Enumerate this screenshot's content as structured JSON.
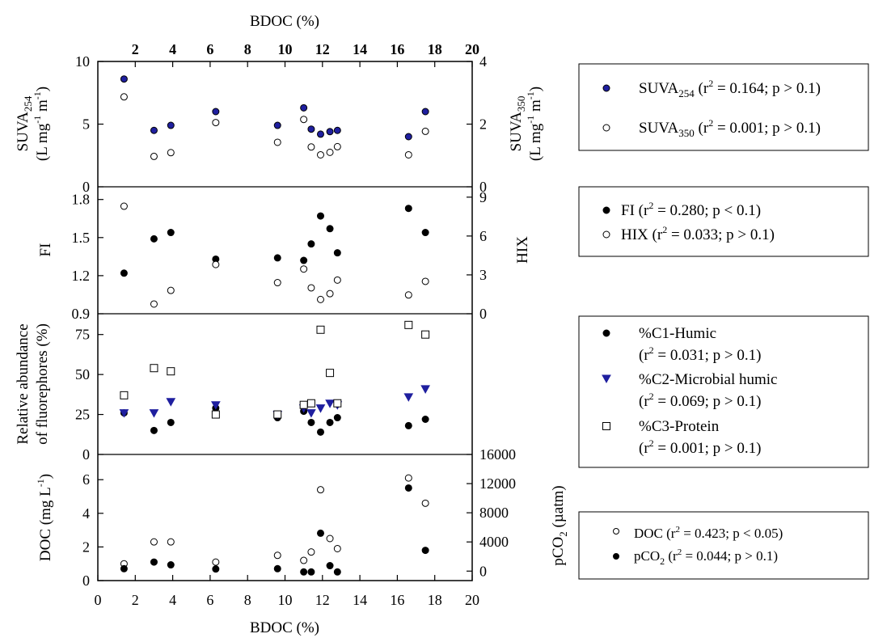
{
  "colors": {
    "blue": "#1f1f9f",
    "black": "#000000",
    "open_fill": "#ffffff"
  },
  "chart_data": {
    "type": "scatter",
    "x_axis": {
      "label": "BDOC (%)",
      "range": [
        0,
        20
      ],
      "ticks": [
        0,
        2,
        4,
        6,
        8,
        10,
        12,
        14,
        16,
        18,
        20
      ],
      "top_ticks": [
        2,
        4,
        6,
        8,
        10,
        12,
        14,
        16,
        18,
        20
      ]
    },
    "panels": [
      {
        "id": "suva",
        "left_axis": {
          "label_main": "SUVA",
          "label_sub": "254",
          "label_line2": "(L mg",
          "label_line2_sup1": "-1",
          "label_line2_mid": " m",
          "label_line2_sup2": "-1",
          "label_line2_end": ")",
          "range": [
            0,
            10
          ],
          "ticks": [
            0,
            5,
            10
          ]
        },
        "right_axis": {
          "label_main": "SUVA",
          "label_sub": "350",
          "label_line2": "(L mg",
          "label_line2_sup1": "-1",
          "label_line2_mid": " m",
          "label_line2_sup2": "-1",
          "label_line2_end": ")",
          "range": [
            0,
            4
          ],
          "ticks": [
            0,
            2,
            4
          ]
        },
        "series": [
          {
            "axis": "left",
            "marker": "circle",
            "fill": "blue",
            "legend": {
              "pre": "SUVA",
              "sub": "254",
              "mid": " (r",
              "sup": "2",
              "post": " = 0.164; p > 0.1)"
            },
            "points": [
              [
                1.4,
                8.6
              ],
              [
                3.0,
                4.5
              ],
              [
                3.9,
                4.9
              ],
              [
                6.3,
                6.0
              ],
              [
                9.6,
                4.9
              ],
              [
                11.0,
                6.3
              ],
              [
                11.4,
                4.6
              ],
              [
                11.9,
                4.2
              ],
              [
                12.4,
                4.4
              ],
              [
                12.8,
                4.5
              ],
              [
                16.6,
                4.0
              ],
              [
                17.5,
                6.0
              ]
            ]
          },
          {
            "axis": "right",
            "marker": "circle",
            "fill": "none",
            "legend": {
              "pre": "SUVA",
              "sub": "350",
              "mid": " (r",
              "sup": "2",
              "post": " = 0.001; p > 0.1)"
            },
            "points": [
              [
                1.4,
                2.87
              ],
              [
                3.0,
                0.97
              ],
              [
                3.9,
                1.09
              ],
              [
                6.3,
                2.05
              ],
              [
                9.6,
                1.42
              ],
              [
                11.0,
                2.15
              ],
              [
                11.4,
                1.27
              ],
              [
                11.9,
                1.02
              ],
              [
                12.4,
                1.1
              ],
              [
                12.8,
                1.28
              ],
              [
                16.6,
                1.02
              ],
              [
                17.5,
                1.77
              ]
            ]
          }
        ]
      },
      {
        "id": "fi",
        "left_axis": {
          "label_main": "FI",
          "range": [
            0.9,
            1.9
          ],
          "ticks": [
            0.9,
            1.2,
            1.5,
            1.8
          ],
          "tick_labels": [
            "0.9",
            "1.2",
            "1.5",
            "1.8"
          ]
        },
        "right_axis": {
          "label_main": "HIX",
          "range": [
            0,
            9.8
          ],
          "ticks": [
            0,
            3,
            6,
            9
          ]
        },
        "series": [
          {
            "axis": "left",
            "marker": "circle",
            "fill": "black",
            "legend": {
              "pre": "FI (r",
              "sup": "2",
              "post": " = 0.280; p < 0.1)"
            },
            "points": [
              [
                1.4,
                1.22
              ],
              [
                3.0,
                1.49
              ],
              [
                3.9,
                1.54
              ],
              [
                6.3,
                1.33
              ],
              [
                9.6,
                1.34
              ],
              [
                11.0,
                1.32
              ],
              [
                11.4,
                1.45
              ],
              [
                11.9,
                1.67
              ],
              [
                12.4,
                1.57
              ],
              [
                12.8,
                1.38
              ],
              [
                16.6,
                1.73
              ],
              [
                17.5,
                1.54
              ]
            ]
          },
          {
            "axis": "right",
            "marker": "circle",
            "fill": "none",
            "legend": {
              "pre": "HIX (r",
              "sup": "2",
              "post": " = 0.033; p > 0.1)"
            },
            "points": [
              [
                1.4,
                8.3
              ],
              [
                3.0,
                0.75
              ],
              [
                3.9,
                1.8
              ],
              [
                6.3,
                3.8
              ],
              [
                9.6,
                2.4
              ],
              [
                11.0,
                3.45
              ],
              [
                11.4,
                2.0
              ],
              [
                11.9,
                1.1
              ],
              [
                12.4,
                1.55
              ],
              [
                12.8,
                2.6
              ],
              [
                16.6,
                1.45
              ],
              [
                17.5,
                2.5
              ]
            ]
          }
        ]
      },
      {
        "id": "fluoro",
        "left_axis": {
          "label_line1": "Relative abundance",
          "label_line2": "of fluorephores (%)",
          "range": [
            0,
            88
          ],
          "ticks": [
            0,
            25,
            50,
            75
          ]
        },
        "series": [
          {
            "axis": "left",
            "marker": "circle",
            "fill": "black",
            "legend": {
              "line1": "%C1-Humic",
              "pre": "(r",
              "sup": "2",
              "post": " = 0.031; p > 0.1)"
            },
            "points": [
              [
                1.4,
                26
              ],
              [
                3.0,
                15
              ],
              [
                3.9,
                20
              ],
              [
                6.3,
                29
              ],
              [
                9.6,
                23
              ],
              [
                11.0,
                27
              ],
              [
                11.4,
                20
              ],
              [
                11.9,
                14
              ],
              [
                12.4,
                20
              ],
              [
                12.8,
                23
              ],
              [
                16.6,
                18
              ],
              [
                17.5,
                22
              ]
            ]
          },
          {
            "axis": "left",
            "marker": "triangle",
            "fill": "blue",
            "legend": {
              "line1": "%C2-Microbial humic",
              "pre": "(r",
              "sup": "2",
              "post": " = 0.069; p > 0.1)"
            },
            "points": [
              [
                1.4,
                26
              ],
              [
                3.0,
                26
              ],
              [
                3.9,
                33
              ],
              [
                6.3,
                31
              ],
              [
                9.6,
                25
              ],
              [
                11.0,
                29
              ],
              [
                11.4,
                26
              ],
              [
                11.9,
                29
              ],
              [
                12.4,
                32
              ],
              [
                12.8,
                31
              ],
              [
                16.6,
                36
              ],
              [
                17.5,
                41
              ]
            ]
          },
          {
            "axis": "left",
            "marker": "square",
            "fill": "none",
            "legend": {
              "line1": "%C3-Protein",
              "pre": "(r",
              "sup": "2",
              "post": " = 0.001; p > 0.1)"
            },
            "points": [
              [
                1.4,
                37
              ],
              [
                3.0,
                54
              ],
              [
                3.9,
                52
              ],
              [
                6.3,
                25
              ],
              [
                9.6,
                25
              ],
              [
                11.0,
                31
              ],
              [
                11.4,
                32
              ],
              [
                11.9,
                78
              ],
              [
                12.4,
                51
              ],
              [
                12.8,
                32
              ],
              [
                16.6,
                81
              ],
              [
                17.5,
                75
              ]
            ]
          }
        ]
      },
      {
        "id": "doc",
        "left_axis": {
          "label_main": "DOC (mg L",
          "label_sup": "-1",
          "label_end": ")",
          "range": [
            0,
            7.5
          ],
          "ticks": [
            0,
            2,
            4,
            6
          ]
        },
        "right_axis": {
          "label_main": "pCO",
          "label_sub": "2",
          "label_end": " (µatm)",
          "range": [
            -1300,
            16000
          ],
          "ticks": [
            0,
            4000,
            8000,
            12000,
            16000
          ]
        },
        "series": [
          {
            "axis": "left",
            "marker": "circle",
            "fill": "none",
            "legend": {
              "pre": "DOC (r",
              "sup": "2",
              "post": " = 0.423; p < 0.05)"
            },
            "points": [
              [
                1.4,
                1.0
              ],
              [
                3.0,
                2.3
              ],
              [
                3.9,
                2.3
              ],
              [
                6.3,
                1.1
              ],
              [
                9.6,
                1.5
              ],
              [
                11.0,
                1.2
              ],
              [
                11.4,
                1.7
              ],
              [
                11.9,
                5.4
              ],
              [
                12.4,
                2.5
              ],
              [
                12.8,
                1.9
              ],
              [
                16.6,
                6.1
              ],
              [
                17.5,
                4.6
              ]
            ]
          },
          {
            "axis": "right",
            "marker": "circle",
            "fill": "black",
            "legend": {
              "pre": "pCO",
              "sub": "2",
              "mid": " (r",
              "sup": "2",
              "post": " = 0.044; p > 0.1)"
            },
            "points": [
              [
                1.4,
                330
              ],
              [
                3.0,
                1240
              ],
              [
                3.9,
                860
              ],
              [
                6.3,
                290
              ],
              [
                9.6,
                330
              ],
              [
                11.0,
                -110
              ],
              [
                11.4,
                -110
              ],
              [
                11.9,
                5200
              ],
              [
                12.4,
                750
              ],
              [
                12.8,
                -110
              ],
              [
                16.6,
                11400
              ],
              [
                17.5,
                2850
              ]
            ]
          }
        ]
      }
    ]
  }
}
